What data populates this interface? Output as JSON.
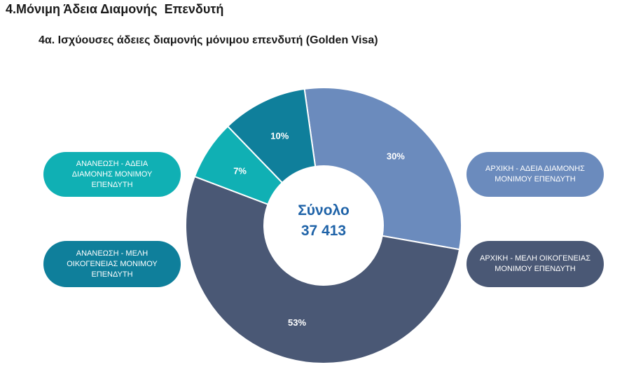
{
  "heading": "4.Μόνιμη Άδεια Διαμονής  Επενδυτή",
  "subheading": "4α. Ισχύουσες άδειες διαμονής μόνιμου επενδυτή (Golden Visa)",
  "colors": {
    "initial_permit": "#6b8bbd",
    "initial_family": "#4a5875",
    "renewal_family": "#0f7f9b",
    "renewal_permit": "#10b0b4"
  },
  "chart_data": {
    "type": "pie",
    "donut": true,
    "center_label": "Σύνολο",
    "center_value": "37 413",
    "slices": [
      {
        "name": "ΑΡΧΙΚΗ - ΑΔΕΙΑ ΔΙΑΜΟΝΗΣ ΜΟΝΙΜΟΥ ΕΠΕΝΔΥΤΗ",
        "value": 30,
        "label": "30%",
        "color": "#6b8bbd"
      },
      {
        "name": "ΑΡΧΙΚΗ - ΜΕΛΗ ΟΙΚΟΓΕΝΕΙΑΣ ΜΟΝΙΜΟΥ ΕΠΕΝΔΥΤΗ",
        "value": 53,
        "label": "53%",
        "color": "#4a5875"
      },
      {
        "name": "ΑΝΑΝΕΩΣΗ - ΜΕΛΗ ΟΙΚΟΓΕΝΕΙΑΣ ΜΟΝΙΜΟΥ ΕΠΕΝΔΥΤΗ",
        "value": 0,
        "label": "",
        "color": "#0f7f9b"
      },
      {
        "name": "ΑΝΑΝΕΩΣΗ - ΑΔΕΙΑ ΔΙΑΜΟΝΗΣ ΜΟΝΙΜΟΥ ΕΠΕΝΔΥΤΗ",
        "value": 7,
        "label": "7%",
        "color": "#10b0b4"
      },
      {
        "name": "",
        "value": 10,
        "label": "10%",
        "color": "#0f7f9b"
      }
    ],
    "legend": [
      {
        "text": "ΑΝΑΝΕΩΣΗ - ΑΔΕΙΑ ΔΙΑΜΟΝΗΣ ΜΟΝΙΜΟΥ ΕΠΕΝΔΥΤΗ",
        "color": "#10b0b4",
        "placement": "left-top"
      },
      {
        "text": "ΑΝΑΝΕΩΣΗ - ΜΕΛΗ ΟΙΚΟΓΕΝΕΙΑΣ ΜΟΝΙΜΟΥ ΕΠΕΝΔΥΤΗ",
        "color": "#0f7f9b",
        "placement": "left-bottom"
      },
      {
        "text": "ΑΡΧΙΚΗ - ΑΔΕΙΑ ΔΙΑΜΟΝΗΣ ΜΟΝΙΜΟΥ ΕΠΕΝΔΥΤΗ",
        "color": "#6b8bbd",
        "placement": "right-top"
      },
      {
        "text": "ΑΡΧΙΚΗ - ΜΕΛΗ ΟΙΚΟΓΕΝΕΙΑΣ ΜΟΝΙΜΟΥ ΕΠΕΝΔΥΤΗ",
        "color": "#4a5875",
        "placement": "right-bottom"
      }
    ]
  },
  "legend_lines": {
    "renewal_permit": [
      "ΑΝΑΝΕΩΣΗ - ΑΔΕΙΑ",
      "ΔΙΑΜΟΝΗΣ ΜΟΝΙΜΟΥ",
      "ΕΠΕΝΔΥΤΗ"
    ],
    "renewal_family": [
      "ΑΝΑΝΕΩΣΗ - ΜΕΛΗ",
      "ΟΙΚΟΓΕΝΕΙΑΣ ΜΟΝΙΜΟΥ",
      "ΕΠΕΝΔΥΤΗ"
    ],
    "initial_permit": [
      "ΑΡΧΙΚΗ - ΑΔΕΙΑ ΔΙΑΜΟΝΗΣ",
      "ΜΟΝΙΜΟΥ ΕΠΕΝΔΥΤΗ"
    ],
    "initial_family": [
      "ΑΡΧΙΚΗ - ΜΕΛΗ ΟΙΚΟΓΕΝΕΙΑΣ",
      "ΜΟΝΙΜΟΥ ΕΠΕΝΔΥΤΗ"
    ]
  }
}
